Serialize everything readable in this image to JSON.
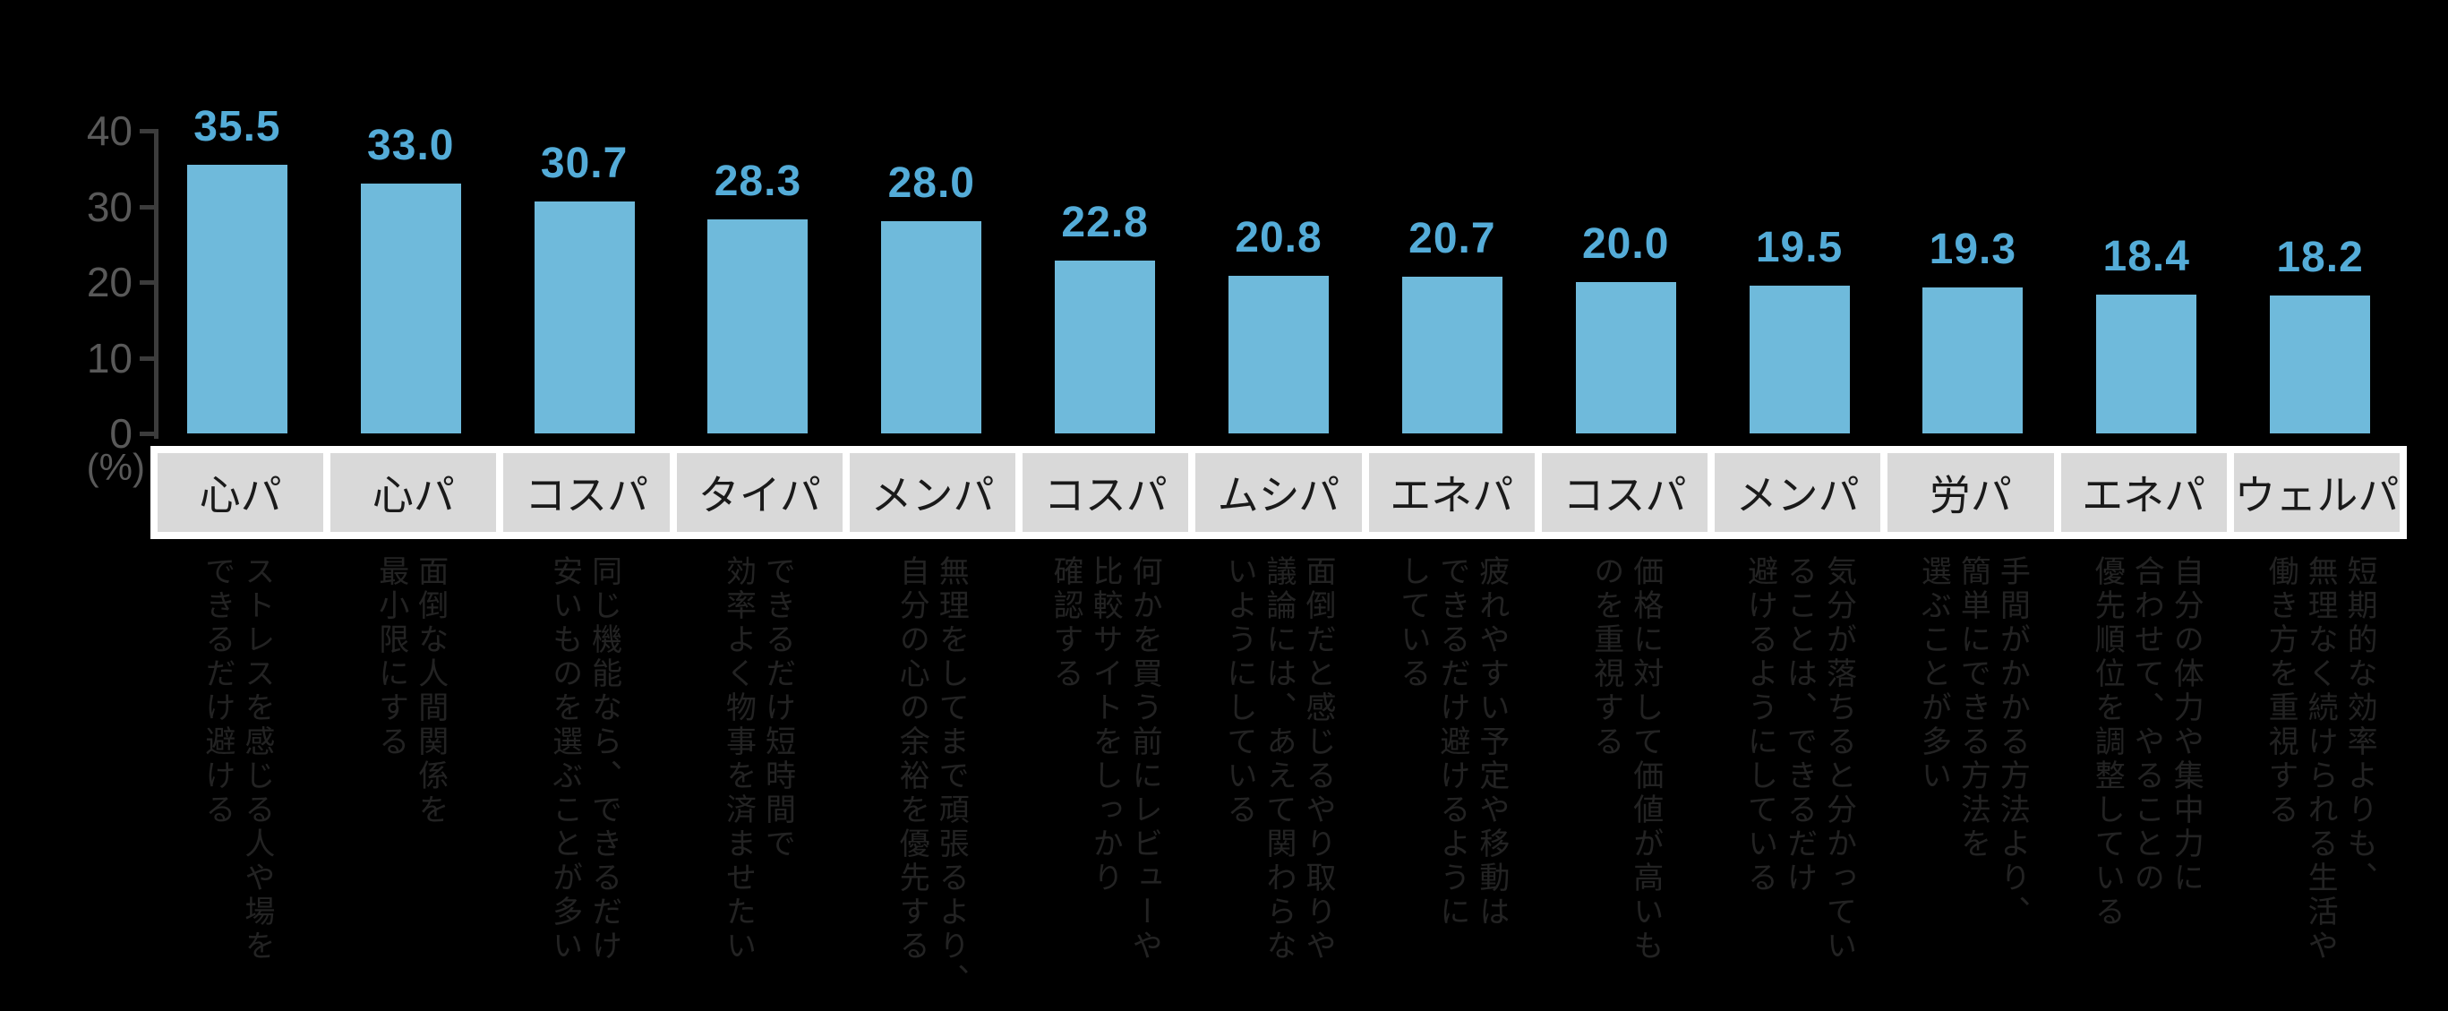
{
  "chart_data": {
    "type": "bar",
    "title": "",
    "unit_label": "(%)",
    "ylim": [
      0,
      40
    ],
    "yticks": [
      0,
      10,
      20,
      30,
      40
    ],
    "grid": false,
    "legend": false,
    "bar_color": "#6FBADB",
    "value_label_color": "#54ACD8",
    "axis_color": "#3c3c3c",
    "tick_label_color": "#595959",
    "category_cell_color": "#d9d9d9",
    "categories": [
      "心パ",
      "心パ",
      "コスパ",
      "タイパ",
      "メンパ",
      "コスパ",
      "ムシパ",
      "エネパ",
      "コスパ",
      "メンパ",
      "労パ",
      "エネパ",
      "ウェルパ"
    ],
    "values": [
      35.5,
      33.0,
      30.7,
      28.3,
      28.0,
      22.8,
      20.8,
      20.7,
      20.0,
      19.5,
      19.3,
      18.4,
      18.2
    ],
    "value_labels": [
      "35.5",
      "33.0",
      "30.7",
      "28.3",
      "28.0",
      "22.8",
      "20.8",
      "20.7",
      "20.0",
      "19.5",
      "19.3",
      "18.4",
      "18.2"
    ],
    "descriptions": [
      [
        "ストレスを感じる人や場を",
        "できるだけ避ける"
      ],
      [
        "面倒な人間関係を",
        "最小限にする"
      ],
      [
        "同じ機能なら、できるだけ",
        "安いものを選ぶことが多い"
      ],
      [
        "できるだけ短時間で",
        "効率よく物事を済ませたい"
      ],
      [
        "無理をしてまで頑張るより、",
        "自分の心の余裕を優先する"
      ],
      [
        "何かを買う前にレビューや",
        "比較サイトをしっかり",
        "確認する"
      ],
      [
        "面倒だと感じるやり取りや",
        "議論には、あえて関わらな",
        "いようにしている"
      ],
      [
        "疲れやすい予定や移動は",
        "できるだけ避けるように",
        "している"
      ],
      [
        "価格に対して価値が高いも",
        "のを重視する"
      ],
      [
        "気分が落ちると分かってい",
        "ることは、できるだけ",
        "避けるようにしている"
      ],
      [
        "手間がかかる方法より、",
        "簡単にできる方法を",
        "選ぶことが多い"
      ],
      [
        "自分の体力や集中力に",
        "合わせて、やることの",
        "優先順位を調整している"
      ],
      [
        "短期的な効率よりも、",
        "無理なく続けられる生活や",
        "働き方を重視する"
      ]
    ]
  }
}
